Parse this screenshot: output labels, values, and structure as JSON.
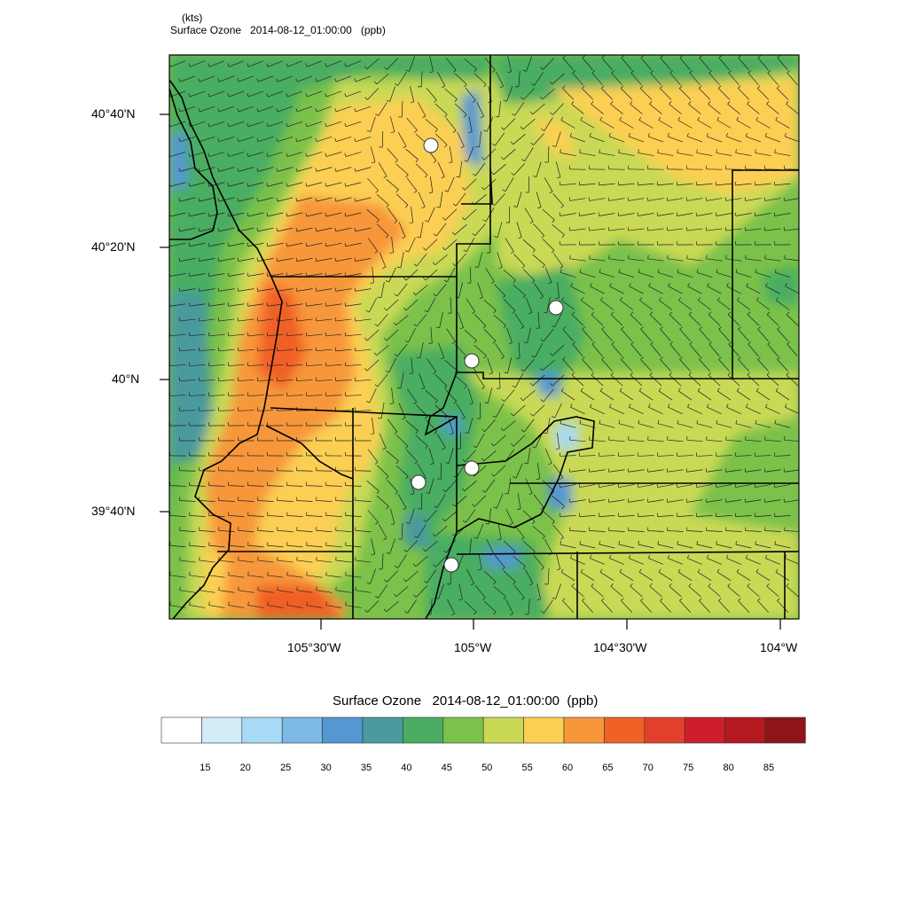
{
  "header": {
    "line1": "(kts)",
    "line2": "Surface Ozone   2014-08-12_01:00:00   (ppb)"
  },
  "axes": {
    "lat_ticks": [
      "40°40'N",
      "40°20'N",
      "40°N",
      "39°40'N"
    ],
    "lon_ticks": [
      "105°30'W",
      "105°W",
      "104°30'W",
      "104°W"
    ]
  },
  "colorbar": {
    "title": "Surface Ozone   2014-08-12_01:00:00  (ppb)",
    "labels": [
      "15",
      "20",
      "25",
      "30",
      "35",
      "40",
      "45",
      "50",
      "55",
      "60",
      "65",
      "70",
      "75",
      "80",
      "85"
    ],
    "colors": [
      "#ffffff",
      "#d2ecf8",
      "#a6daf5",
      "#7cb9e4",
      "#5597d0",
      "#4a9a9e",
      "#4aad62",
      "#7bc14a",
      "#c9d955",
      "#fbcf52",
      "#f7973a",
      "#f06128",
      "#e1412a",
      "#cf1e2b",
      "#b4191f",
      "#8e1517"
    ]
  },
  "chart_data": {
    "type": "heatmap",
    "title": "Surface Ozone   2014-08-12_01:00:00   (ppb)",
    "variable": "Surface Ozone (ppb) with wind barbs (kts)",
    "levels": [
      15,
      20,
      25,
      30,
      35,
      40,
      45,
      50,
      55,
      60,
      65,
      70,
      75,
      80,
      85
    ],
    "lat_range": [
      "39°25'N",
      "40°50'N"
    ],
    "lon_range": [
      "105°50'W",
      "103°58'W"
    ]
  }
}
